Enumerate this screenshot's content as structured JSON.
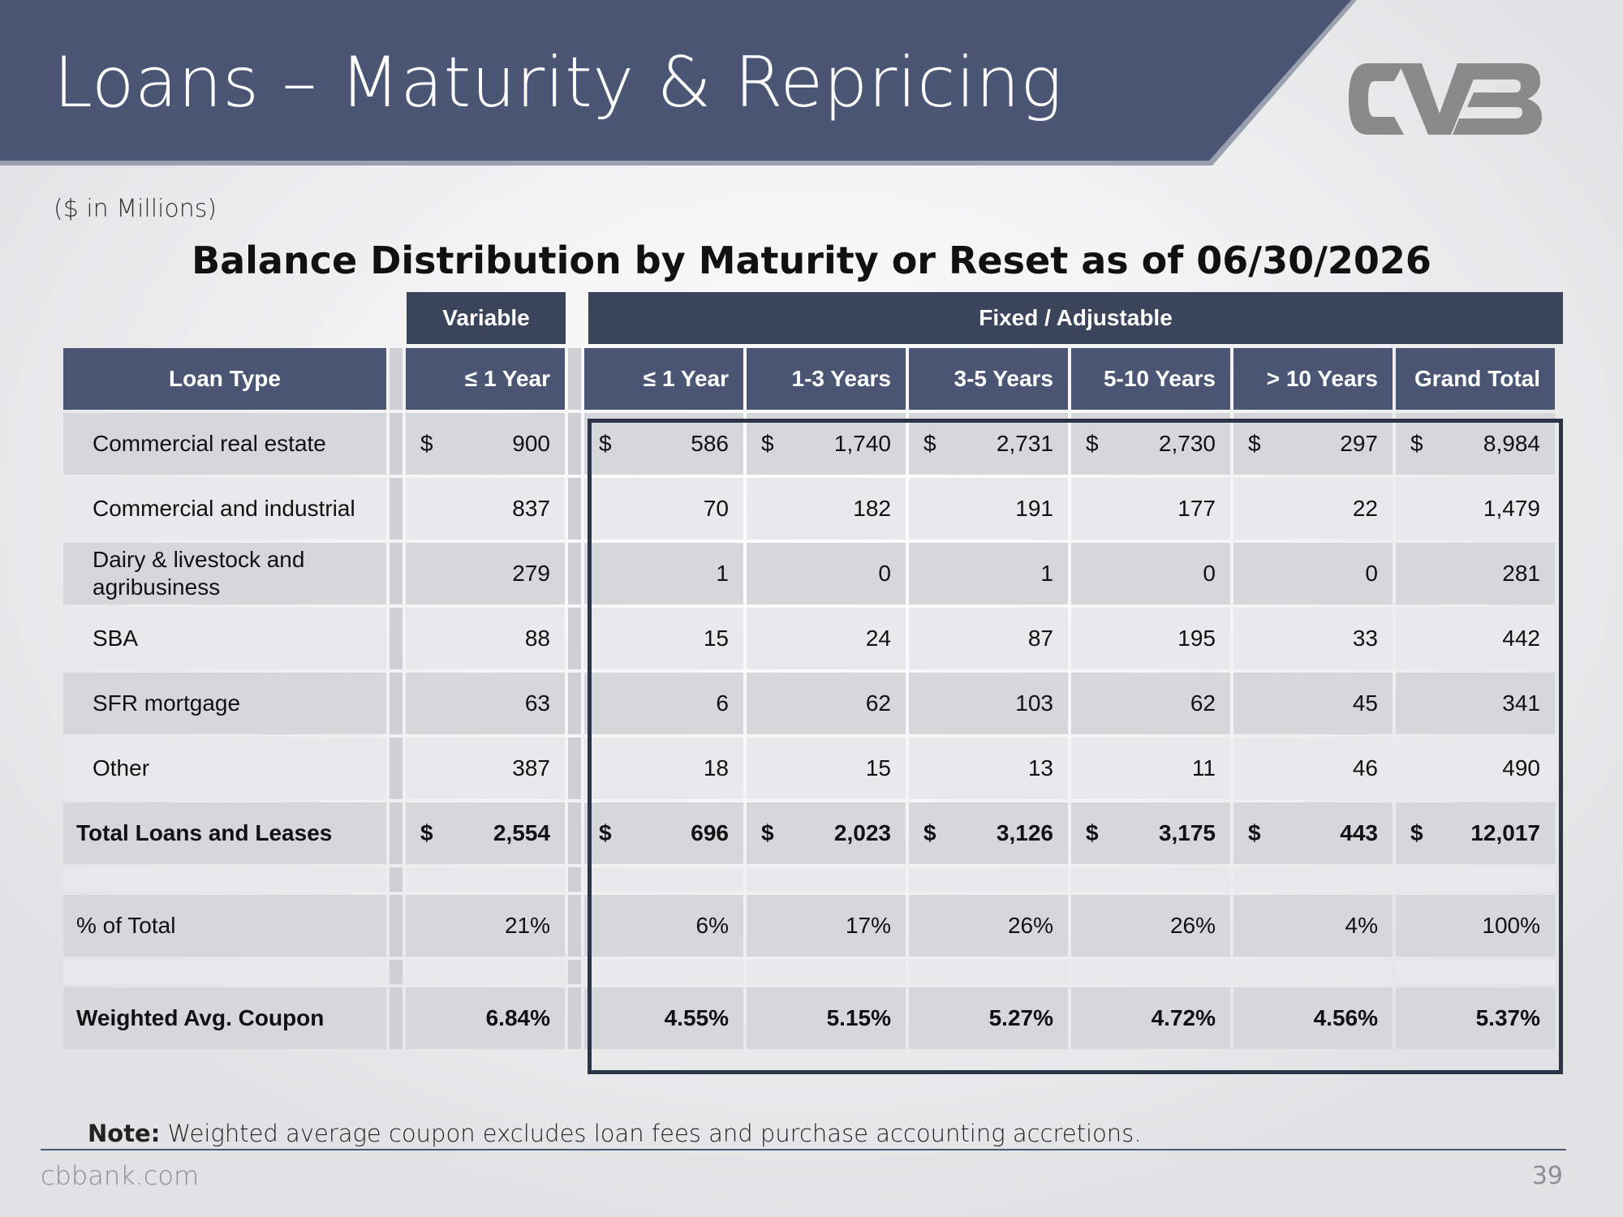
{
  "slide": {
    "title": "Loans – Maturity & Repricing",
    "units": "($ in Millions)",
    "subtitle": "Balance Distribution by Maturity or Reset as of 06/30/2026",
    "logo_color": "#8a8a8a",
    "banner_color": "#4a5674"
  },
  "groups": {
    "variable": "Variable",
    "fixed": "Fixed / Adjustable"
  },
  "columns": [
    "Loan Type",
    "≤ 1 Year",
    "≤ 1 Year",
    "1-3 Years",
    "3-5 Years",
    "5-10 Years",
    "> 10 Years",
    "Grand Total"
  ],
  "rows": [
    {
      "label": "Commercial real estate",
      "cur": "$",
      "values": [
        "900",
        "586",
        "1,740",
        "2,731",
        "2,730",
        "297",
        "8,984"
      ]
    },
    {
      "label": "Commercial and industrial",
      "values": [
        "837",
        "70",
        "182",
        "191",
        "177",
        "22",
        "1,479"
      ]
    },
    {
      "label": "Dairy & livestock and agribusiness",
      "values": [
        "279",
        "1",
        "0",
        "1",
        "0",
        "0",
        "281"
      ]
    },
    {
      "label": "SBA",
      "values": [
        "88",
        "15",
        "24",
        "87",
        "195",
        "33",
        "442"
      ]
    },
    {
      "label": "SFR mortgage",
      "values": [
        "63",
        "6",
        "62",
        "103",
        "62",
        "45",
        "341"
      ]
    },
    {
      "label": "Other",
      "values": [
        "387",
        "18",
        "15",
        "13",
        "11",
        "46",
        "490"
      ]
    }
  ],
  "total": {
    "label": "Total Loans and Leases",
    "cur": "$",
    "values": [
      "2,554",
      "696",
      "2,023",
      "3,126",
      "3,175",
      "443",
      "12,017"
    ]
  },
  "pct": {
    "label": "% of Total",
    "values": [
      "21%",
      "6%",
      "17%",
      "26%",
      "26%",
      "4%",
      "100%"
    ]
  },
  "wac": {
    "label": "Weighted Avg. Coupon",
    "values": [
      "6.84%",
      "4.55%",
      "5.15%",
      "5.27%",
      "4.72%",
      "4.56%",
      "5.37%"
    ]
  },
  "note": {
    "bold": "Note:",
    "text": " Weighted average coupon excludes loan fees and purchase accounting accretions."
  },
  "footer": {
    "site": "cbbank.com",
    "page": "39"
  }
}
